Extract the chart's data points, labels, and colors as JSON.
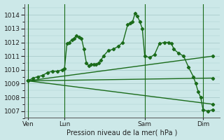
{
  "title": "Pression niveau de la mer( hPa )",
  "bg_color": "#cce8e8",
  "grid_color": "#aacccc",
  "line_color": "#1a6b1a",
  "marker": "D",
  "markersize": 2.2,
  "linewidth": 1.0,
  "ylim": [
    1006.5,
    1014.8
  ],
  "yticks": [
    1007,
    1008,
    1009,
    1010,
    1011,
    1012,
    1013,
    1014
  ],
  "xtick_labels": [
    "Ven",
    "Lun",
    "Sam",
    "Dim"
  ],
  "xtick_positions": [
    0,
    30,
    96,
    144
  ],
  "vline_positions": [
    0,
    30,
    96,
    144
  ],
  "xlim": [
    -3,
    158
  ],
  "series_main": [
    0,
    1009.2,
    4,
    1009.4,
    8,
    1009.5,
    12,
    1009.6,
    16,
    1009.8,
    20,
    1009.9,
    24,
    1009.9,
    28,
    1010.0,
    30,
    1010.1,
    32,
    1011.9,
    34,
    1012.0,
    36,
    1012.2,
    38,
    1012.3,
    40,
    1012.5,
    42,
    1012.4,
    44,
    1012.3,
    46,
    1011.5,
    48,
    1010.5,
    50,
    1010.3,
    52,
    1010.4,
    54,
    1010.4,
    56,
    1010.4,
    58,
    1010.5,
    60,
    1010.7,
    62,
    1011.0,
    66,
    1011.4,
    70,
    1011.5,
    74,
    1011.7,
    78,
    1012.0,
    82,
    1013.3,
    84,
    1013.4,
    86,
    1013.5,
    88,
    1014.1,
    90,
    1013.9,
    92,
    1013.5,
    94,
    1013.0,
    96,
    1011.0,
    100,
    1010.9,
    104,
    1011.1,
    108,
    1011.9,
    112,
    1012.0,
    116,
    1012.0,
    118,
    1011.9,
    120,
    1011.5,
    124,
    1011.2,
    128,
    1011.0,
    132,
    1010.2,
    136,
    1009.5,
    138,
    1009.0,
    140,
    1008.4,
    142,
    1008.0,
    144,
    1007.1,
    148,
    1007.0,
    152,
    1007.1
  ],
  "trend_lines": [
    [
      0,
      1009.2,
      152,
      1011.0
    ],
    [
      0,
      1009.2,
      152,
      1009.4
    ],
    [
      0,
      1009.2,
      152,
      1007.5
    ]
  ]
}
